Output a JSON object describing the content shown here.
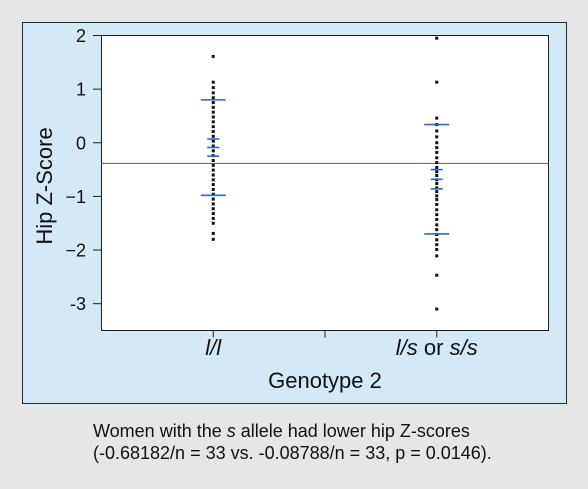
{
  "colors": {
    "page_background": "#e5e6e8",
    "panel_background": "#d3e9f8",
    "panel_border": "#2b2b2b",
    "plot_background": "#ffffff",
    "plot_border": "#1e1e1e",
    "point": "#111111",
    "summary_line": "#2469d8",
    "reference_line": "#737373",
    "text": "#111111"
  },
  "chart_data": {
    "type": "scatter",
    "xlabel": "Genotype 2",
    "ylabel": "Hip Z-Score",
    "categories": [
      "l/l",
      "l/s or s/s"
    ],
    "ylim": [
      -3.5,
      2
    ],
    "yticks": [
      2,
      1,
      0,
      -1,
      -2,
      -3
    ],
    "ytick_labels": [
      "2",
      "1",
      "0",
      "−1",
      "−2",
      "-3"
    ],
    "grid": false,
    "reference_line": -0.385,
    "series": [
      {
        "values": [
          1.61,
          1.13,
          1.03,
          0.93,
          0.84,
          0.75,
          0.66,
          0.57,
          0.48,
          0.39,
          0.3,
          0.21,
          0.12,
          0.03,
          -0.06,
          -0.15,
          -0.24,
          -0.33,
          -0.42,
          -0.51,
          -0.6,
          -0.69,
          -0.78,
          -0.87,
          -0.96,
          -1.05,
          -1.14,
          -1.23,
          -1.32,
          -1.41,
          -1.5,
          -1.69,
          -1.8
        ],
        "mean": -0.08788,
        "sd_lines": [
          0.8,
          -0.98
        ],
        "se_lines": [
          0.07,
          -0.25
        ]
      },
      {
        "values": [
          1.95,
          1.13,
          0.46,
          0.34,
          0.22,
          0.11,
          0.0,
          -0.09,
          -0.18,
          -0.28,
          -0.37,
          -0.46,
          -0.54,
          -0.61,
          -0.69,
          -0.76,
          -0.84,
          -0.91,
          -0.99,
          -1.06,
          -1.15,
          -1.25,
          -1.34,
          -1.43,
          -1.53,
          -1.62,
          -1.71,
          -1.81,
          -1.9,
          -1.99,
          -2.11,
          -2.47,
          -3.1
        ],
        "mean": -0.68182,
        "sd_lines": [
          0.34,
          -1.7
        ],
        "se_lines": [
          -0.5,
          -0.86
        ]
      }
    ]
  },
  "caption": {
    "line1_before": "Women with the ",
    "line1_italic": "s",
    "line1_after": " allele had lower hip Z-scores",
    "line2": "(-0.68182/n = 33 vs. -0.08788/n = 33, p = 0.0146)."
  }
}
